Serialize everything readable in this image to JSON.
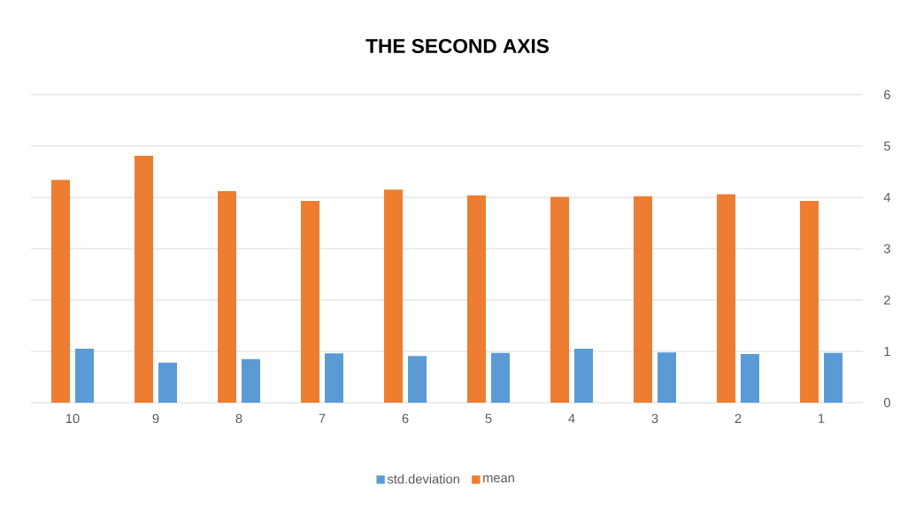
{
  "chart_data": {
    "type": "bar",
    "title": "THE SECOND AXIS",
    "categories": [
      "10",
      "9",
      "8",
      "7",
      "6",
      "5",
      "4",
      "3",
      "2",
      "1"
    ],
    "series": [
      {
        "name": "std.deviation",
        "color": "#5b9bd5",
        "values": [
          1.05,
          0.78,
          0.85,
          0.96,
          0.91,
          0.97,
          1.05,
          0.98,
          0.95,
          0.97
        ]
      },
      {
        "name": "mean",
        "color": "#ed7d31",
        "values": [
          4.34,
          4.81,
          4.12,
          3.93,
          4.15,
          4.04,
          4.01,
          4.02,
          4.06,
          3.93
        ]
      }
    ],
    "ylim": [
      0,
      6
    ],
    "yticks": [
      0,
      1,
      2,
      3,
      4,
      5,
      6
    ],
    "grid": "y",
    "legend": "bottom"
  }
}
